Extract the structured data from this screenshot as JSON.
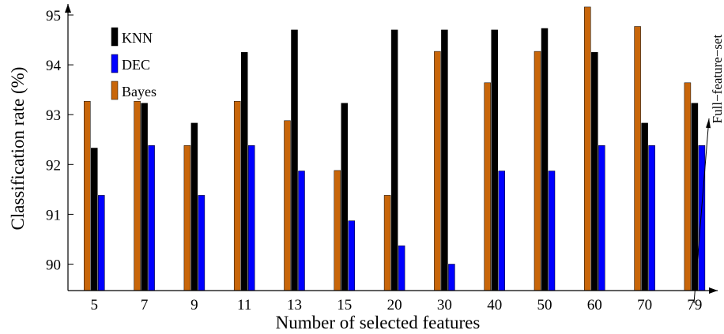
{
  "chart_data": {
    "type": "bar",
    "title": "",
    "xlabel": "Number of selected features",
    "ylabel": "Classification rate (%)",
    "categories": [
      "5",
      "7",
      "9",
      "11",
      "13",
      "15",
      "20",
      "30",
      "40",
      "50",
      "60",
      "70",
      "79"
    ],
    "series": [
      {
        "name": "Bayes",
        "color": "#c8660a",
        "values": [
          93.27,
          93.27,
          92.38,
          93.27,
          92.88,
          91.88,
          91.38,
          94.27,
          93.64,
          94.27,
          95.16,
          94.77,
          93.64
        ]
      },
      {
        "name": "KNN",
        "color": "#000000",
        "values": [
          92.33,
          93.23,
          92.83,
          94.25,
          94.7,
          93.23,
          94.7,
          94.7,
          94.7,
          94.73,
          94.25,
          92.83,
          93.23
        ]
      },
      {
        "name": "DEC",
        "color": "#0000ff",
        "values": [
          91.38,
          92.38,
          91.38,
          92.38,
          91.87,
          90.87,
          90.37,
          90.0,
          91.87,
          91.87,
          92.38,
          92.38,
          92.38
        ]
      }
    ],
    "ylim": [
      89.5,
      95.2
    ],
    "yticks": [
      "90",
      "91",
      "92",
      "93",
      "94",
      "95"
    ],
    "legend_order": [
      "KNN",
      "DEC",
      "Bayes"
    ],
    "legend_placement": "top-left",
    "annotation": "Full−feature−set",
    "grid": false
  }
}
